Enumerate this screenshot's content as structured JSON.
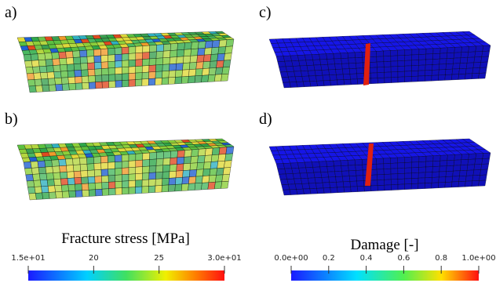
{
  "panels": [
    {
      "label": "a)"
    },
    {
      "label": "c)"
    },
    {
      "label": "b)"
    },
    {
      "label": "d)"
    }
  ],
  "colorbars": [
    {
      "title": "Fracture stress [MPa]",
      "range": [
        15,
        30
      ],
      "ticks": [
        {
          "value": 15,
          "label": "1.5e+01"
        },
        20,
        25,
        {
          "value": 30,
          "label": "3.0e+01"
        }
      ]
    },
    {
      "title": "Damage [-]",
      "range": [
        0,
        1
      ],
      "ticks": [
        {
          "value": 0,
          "label": "0.0e+00"
        },
        0.2,
        0.4,
        0.6,
        0.8,
        {
          "value": 1,
          "label": "1.0e+00"
        }
      ]
    }
  ]
}
